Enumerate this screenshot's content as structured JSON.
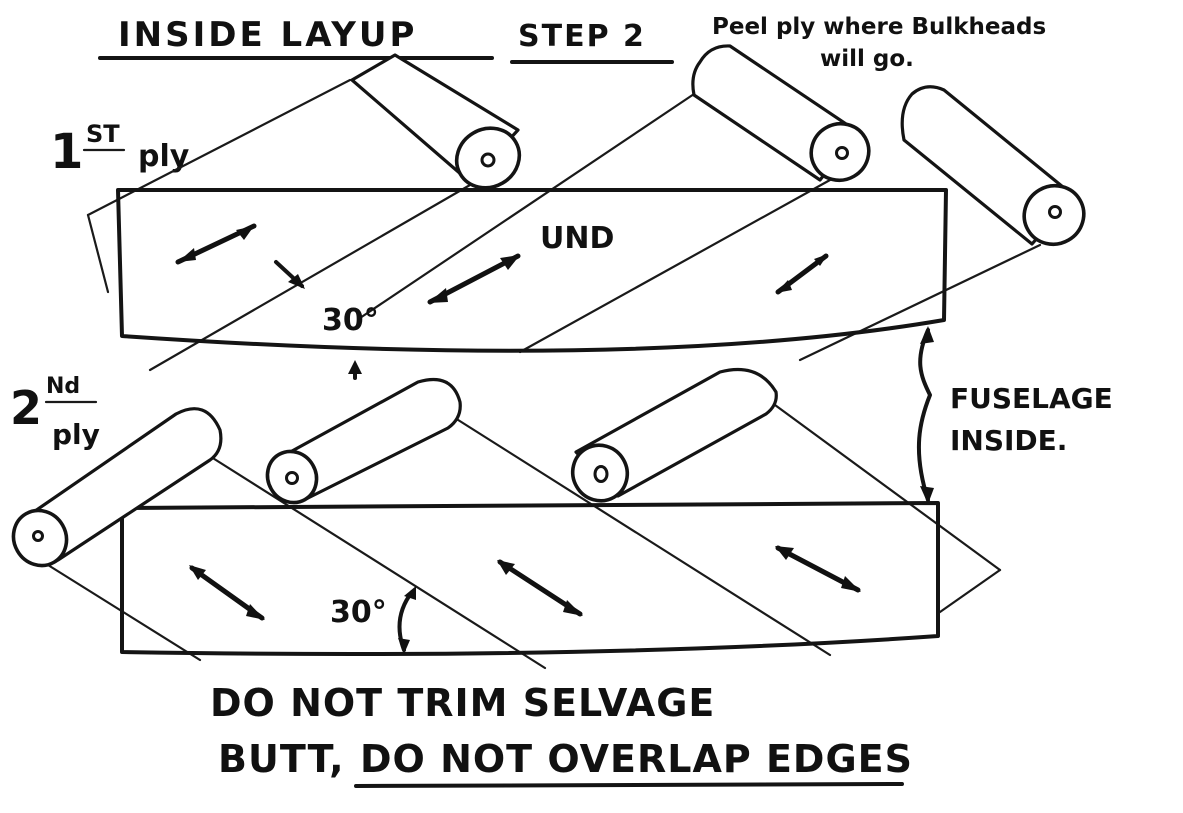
{
  "header": {
    "title": "INSIDE LAYUP",
    "step": "STEP 2",
    "note_line1": "Peel ply where Bulkheads",
    "note_line2": "will go."
  },
  "ply1": {
    "label_num": "1",
    "label_sup": "ST",
    "label_word": "ply",
    "angle": "30°",
    "fiber": "UND"
  },
  "ply2": {
    "label_num": "2",
    "label_sup": "Nd",
    "label_word": "ply",
    "angle": "30°"
  },
  "side_label": {
    "line1": "FUSELAGE",
    "line2": "INSIDE."
  },
  "footer": {
    "line1": "DO NOT TRIM SELVAGE",
    "line2_part1": "BUTT,",
    "line2_part2": "DO NOT OVERLAP EDGES"
  }
}
